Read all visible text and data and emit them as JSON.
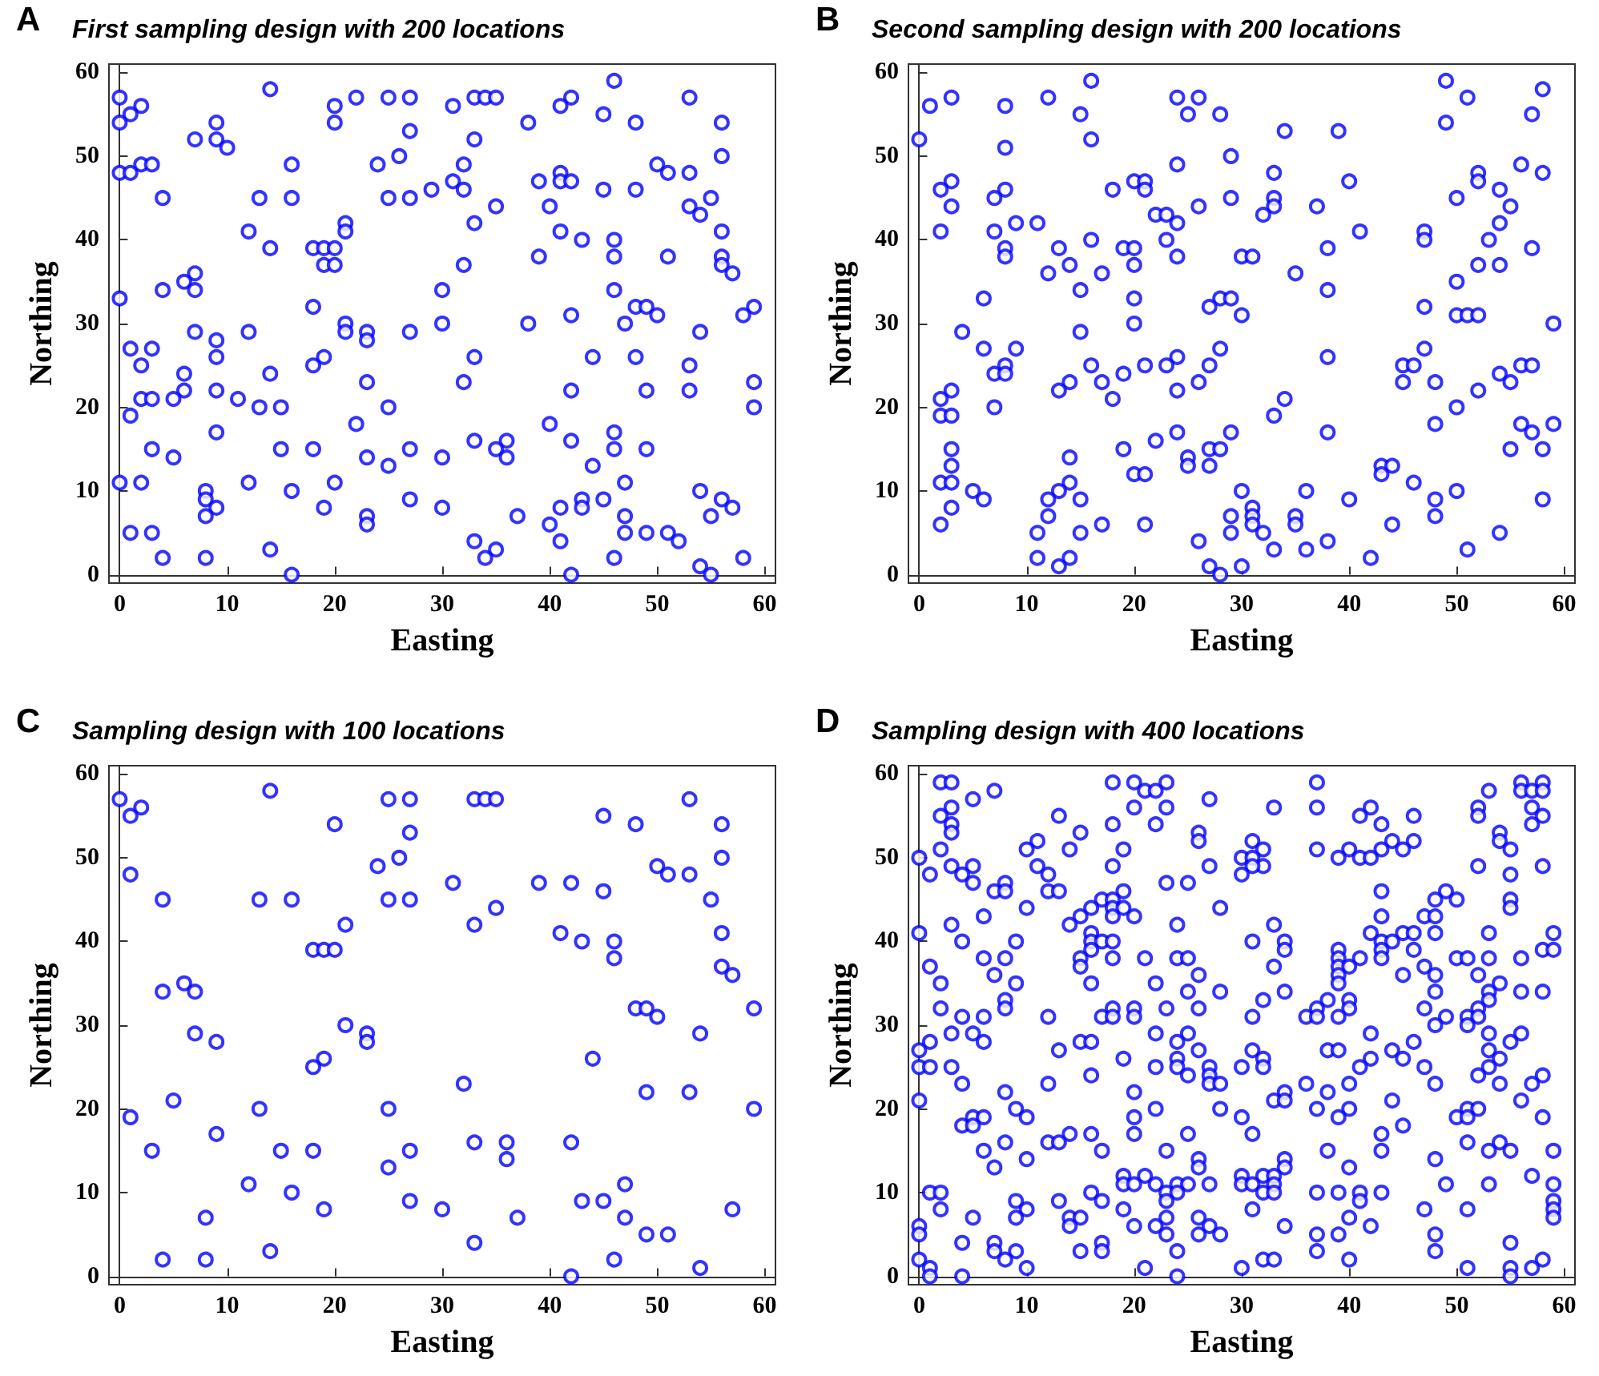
{
  "chart_data": [
    {
      "type": "scatter",
      "title": "First sampling design with 200 locations",
      "xlabel": "Easting",
      "ylabel": "Northing",
      "annotations": [
        "A"
      ],
      "xlim": [
        -1,
        61
      ],
      "ylim": [
        -1,
        61
      ],
      "xticks": [
        0,
        10,
        20,
        30,
        40,
        50,
        60
      ],
      "yticks": [
        0,
        10,
        20,
        30,
        40,
        50,
        60
      ],
      "marker": "circle",
      "color": "#0000ff",
      "x": [
        14,
        46,
        0,
        22,
        25,
        27,
        33,
        34,
        35,
        42,
        53,
        2,
        20,
        31,
        41,
        1,
        45,
        0,
        9,
        20,
        38,
        48,
        56,
        27,
        7,
        9,
        33,
        10,
        26,
        56,
        2,
        3,
        16,
        24,
        32,
        50,
        0,
        1,
        41,
        51,
        53,
        31,
        39,
        41,
        42,
        29,
        32,
        45,
        48,
        4,
        13,
        16,
        25,
        27,
        55,
        35,
        40,
        53,
        54,
        21,
        33,
        12,
        21,
        41,
        56,
        43,
        46,
        14,
        18,
        19,
        20,
        19,
        20,
        32,
        39,
        46,
        51,
        56,
        56,
        7,
        57,
        6,
        4,
        7,
        30,
        46,
        0,
        18,
        48,
        49,
        59,
        42,
        50,
        58,
        21,
        30,
        38,
        47,
        7,
        12,
        21,
        23,
        27,
        54,
        9,
        23,
        1,
        3,
        9,
        19,
        33,
        44,
        48,
        2,
        18,
        53,
        6,
        14,
        23,
        32,
        59,
        6,
        9,
        42,
        49,
        53,
        2,
        3,
        5,
        11,
        13,
        15,
        25,
        59,
        1,
        22,
        40,
        9,
        46,
        33,
        36,
        42,
        3,
        15,
        18,
        27,
        35,
        46,
        49,
        5,
        23,
        30,
        36,
        25,
        44,
        0,
        2,
        12,
        20,
        47,
        8,
        16,
        54,
        8,
        27,
        43,
        45,
        56,
        9,
        19,
        30,
        41,
        43,
        57,
        8,
        23,
        37,
        47,
        55,
        23,
        40,
        1,
        3,
        47,
        49,
        51,
        33,
        41,
        52,
        14,
        35,
        4,
        8,
        34,
        46,
        58,
        54,
        16,
        42,
        55
      ],
      "values": [
        58,
        59,
        57,
        57,
        57,
        57,
        57,
        57,
        57,
        57,
        57,
        56,
        56,
        56,
        56,
        55,
        55,
        54,
        54,
        54,
        54,
        54,
        54,
        53,
        52,
        52,
        52,
        51,
        50,
        50,
        49,
        49,
        49,
        49,
        49,
        49,
        48,
        48,
        48,
        48,
        48,
        47,
        47,
        47,
        47,
        46,
        46,
        46,
        46,
        45,
        45,
        45,
        45,
        45,
        45,
        44,
        44,
        44,
        43,
        42,
        42,
        41,
        41,
        41,
        41,
        40,
        40,
        39,
        39,
        39,
        39,
        37,
        37,
        37,
        38,
        38,
        38,
        38,
        37,
        36,
        36,
        35,
        34,
        34,
        34,
        34,
        33,
        32,
        32,
        32,
        32,
        31,
        31,
        31,
        30,
        30,
        30,
        30,
        29,
        29,
        29,
        29,
        29,
        29,
        28,
        28,
        27,
        27,
        26,
        26,
        26,
        26,
        26,
        25,
        25,
        25,
        24,
        24,
        23,
        23,
        23,
        22,
        22,
        22,
        22,
        22,
        21,
        21,
        21,
        21,
        20,
        20,
        20,
        20,
        19,
        18,
        18,
        17,
        17,
        16,
        16,
        16,
        15,
        15,
        15,
        15,
        15,
        15,
        15,
        14,
        14,
        14,
        14,
        13,
        13,
        11,
        11,
        11,
        11,
        11,
        10,
        10,
        10,
        9,
        9,
        9,
        9,
        9,
        8,
        8,
        8,
        8,
        8,
        8,
        7,
        7,
        7,
        7,
        7,
        6,
        6,
        5,
        5,
        5,
        5,
        5,
        4,
        4,
        4,
        3,
        3,
        2,
        2,
        2,
        2,
        2,
        1,
        0,
        0,
        0
      ]
    },
    {
      "type": "scatter",
      "title": "Second sampling design with 200 locations",
      "xlabel": "Easting",
      "ylabel": "Northing",
      "annotations": [
        "B"
      ],
      "xlim": [
        -1,
        61
      ],
      "ylim": [
        -1,
        61
      ],
      "xticks": [
        0,
        10,
        20,
        30,
        40,
        50,
        60
      ],
      "yticks": [
        0,
        10,
        20,
        30,
        40,
        50,
        60
      ],
      "marker": "circle",
      "color": "#0000ff",
      "x": [
        16,
        49,
        58,
        3,
        12,
        24,
        26,
        51,
        1,
        8,
        15,
        25,
        28,
        57,
        49,
        34,
        39,
        0,
        16,
        8,
        29,
        24,
        56,
        33,
        52,
        58,
        3,
        20,
        21,
        40,
        52,
        2,
        8,
        18,
        21,
        54,
        7,
        29,
        33,
        50,
        3,
        26,
        33,
        37,
        55,
        22,
        23,
        32,
        9,
        11,
        24,
        54,
        2,
        7,
        41,
        47,
        16,
        23,
        47,
        53,
        8,
        13,
        19,
        20,
        38,
        57,
        8,
        24,
        30,
        31,
        14,
        20,
        52,
        54,
        12,
        17,
        35,
        50,
        15,
        38,
        6,
        20,
        28,
        29,
        27,
        47,
        30,
        50,
        51,
        52,
        20,
        59,
        4,
        15,
        6,
        9,
        28,
        47,
        24,
        38,
        8,
        16,
        21,
        23,
        27,
        45,
        46,
        56,
        57,
        7,
        8,
        19,
        54,
        14,
        17,
        26,
        45,
        48,
        55,
        3,
        13,
        24,
        52,
        2,
        18,
        34,
        7,
        50,
        2,
        3,
        33,
        48,
        56,
        59,
        24,
        29,
        38,
        57,
        22,
        3,
        19,
        27,
        28,
        55,
        58,
        14,
        25,
        3,
        25,
        27,
        43,
        44,
        43,
        20,
        21,
        2,
        3,
        14,
        46,
        5,
        13,
        30,
        36,
        50,
        6,
        12,
        15,
        40,
        48,
        58,
        3,
        31,
        12,
        29,
        31,
        35,
        48,
        2,
        17,
        21,
        31,
        35,
        44,
        11,
        15,
        29,
        32,
        54,
        26,
        38,
        33,
        36,
        51,
        11,
        14,
        42,
        13,
        27,
        30,
        28
      ],
      "values": [
        59,
        59,
        58,
        57,
        57,
        57,
        57,
        57,
        56,
        56,
        55,
        55,
        55,
        55,
        54,
        53,
        53,
        52,
        52,
        51,
        50,
        49,
        49,
        48,
        48,
        48,
        47,
        47,
        47,
        47,
        47,
        46,
        46,
        46,
        46,
        46,
        45,
        45,
        45,
        45,
        44,
        44,
        44,
        44,
        44,
        43,
        43,
        43,
        42,
        42,
        42,
        42,
        41,
        41,
        41,
        41,
        40,
        40,
        40,
        40,
        39,
        39,
        39,
        39,
        39,
        39,
        38,
        38,
        38,
        38,
        37,
        37,
        37,
        37,
        36,
        36,
        36,
        35,
        34,
        34,
        33,
        33,
        33,
        33,
        32,
        32,
        31,
        31,
        31,
        31,
        30,
        30,
        29,
        29,
        27,
        27,
        27,
        27,
        26,
        26,
        25,
        25,
        25,
        25,
        25,
        25,
        25,
        25,
        25,
        24,
        24,
        24,
        24,
        23,
        23,
        23,
        23,
        23,
        23,
        22,
        22,
        22,
        22,
        21,
        21,
        21,
        20,
        20,
        19,
        19,
        19,
        18,
        18,
        18,
        17,
        17,
        17,
        17,
        16,
        15,
        15,
        15,
        15,
        15,
        15,
        14,
        14,
        13,
        13,
        13,
        13,
        13,
        12,
        12,
        12,
        11,
        11,
        11,
        11,
        10,
        10,
        10,
        10,
        10,
        9,
        9,
        9,
        9,
        9,
        9,
        8,
        8,
        7,
        7,
        7,
        7,
        7,
        6,
        6,
        6,
        6,
        6,
        6,
        5,
        5,
        5,
        5,
        5,
        4,
        4,
        3,
        3,
        3,
        2,
        2,
        2,
        1,
        1,
        1,
        0
      ]
    },
    {
      "type": "scatter",
      "title": "Sampling design with 100 locations",
      "xlabel": "Easting",
      "ylabel": "Northing",
      "annotations": [
        "C"
      ],
      "xlim": [
        -1,
        61
      ],
      "ylim": [
        -1,
        61
      ],
      "xticks": [
        0,
        10,
        20,
        30,
        40,
        50,
        60
      ],
      "yticks": [
        0,
        10,
        20,
        30,
        40,
        50,
        60
      ],
      "marker": "circle",
      "color": "#0000ff",
      "x": [
        14,
        0,
        25,
        27,
        33,
        34,
        35,
        53,
        2,
        1,
        45,
        20,
        48,
        56,
        27,
        26,
        56,
        24,
        50,
        1,
        51,
        53,
        31,
        39,
        42,
        45,
        4,
        13,
        16,
        25,
        27,
        55,
        35,
        21,
        33,
        41,
        56,
        43,
        46,
        18,
        19,
        20,
        46,
        56,
        57,
        6,
        4,
        7,
        48,
        49,
        59,
        50,
        21,
        23,
        54,
        7,
        9,
        23,
        19,
        44,
        18,
        32,
        49,
        53,
        5,
        13,
        25,
        59,
        1,
        9,
        33,
        36,
        42,
        3,
        15,
        18,
        27,
        36,
        25,
        12,
        47,
        16,
        27,
        43,
        45,
        19,
        30,
        57,
        8,
        37,
        47,
        49,
        51,
        33,
        14,
        4,
        8,
        46,
        54,
        42
      ],
      "values": [
        58,
        57,
        57,
        57,
        57,
        57,
        57,
        57,
        56,
        55,
        55,
        54,
        54,
        54,
        53,
        50,
        50,
        49,
        49,
        48,
        48,
        48,
        47,
        47,
        47,
        46,
        45,
        45,
        45,
        45,
        45,
        45,
        44,
        42,
        42,
        41,
        41,
        40,
        40,
        39,
        39,
        39,
        38,
        37,
        36,
        35,
        34,
        34,
        32,
        32,
        32,
        31,
        30,
        29,
        29,
        29,
        28,
        28,
        26,
        26,
        25,
        23,
        22,
        22,
        21,
        20,
        20,
        20,
        19,
        17,
        16,
        16,
        16,
        15,
        15,
        15,
        15,
        14,
        13,
        11,
        11,
        10,
        9,
        9,
        9,
        8,
        8,
        8,
        7,
        7,
        7,
        5,
        5,
        4,
        3,
        2,
        2,
        2,
        1,
        0
      ]
    },
    {
      "type": "scatter",
      "title": "Sampling design with 400 locations",
      "xlabel": "Easting",
      "ylabel": "Northing",
      "annotations": [
        "D"
      ],
      "xlim": [
        -1,
        61
      ],
      "ylim": [
        -1,
        61
      ],
      "xticks": [
        0,
        10,
        20,
        30,
        40,
        50,
        60
      ],
      "yticks": [
        0,
        10,
        20,
        30,
        40,
        50,
        60
      ],
      "marker": "circle",
      "color": "#0000ff",
      "x": [
        2,
        3,
        18,
        20,
        23,
        37,
        56,
        58,
        7,
        21,
        22,
        56,
        57,
        58,
        53,
        5,
        27,
        20,
        23,
        3,
        33,
        37,
        42,
        52,
        57,
        2,
        13,
        41,
        46,
        52,
        58,
        3,
        18,
        22,
        43,
        57,
        3,
        15,
        26,
        54,
        26,
        11,
        31,
        44,
        46,
        54,
        2,
        10,
        14,
        19,
        32,
        37,
        40,
        43,
        45,
        55,
        0,
        30,
        31,
        39,
        41,
        42,
        3,
        5,
        11,
        18,
        27,
        32,
        31,
        52,
        58,
        1,
        4,
        12,
        30,
        55,
        5,
        8,
        23,
        25,
        7,
        8,
        12,
        13,
        19,
        43,
        49,
        17,
        18,
        48,
        50,
        55,
        10,
        16,
        18,
        19,
        28,
        55,
        6,
        15,
        20,
        18,
        43,
        47,
        48,
        3,
        14,
        24,
        33,
        0,
        16,
        42,
        45,
        46,
        48,
        53,
        59,
        4,
        9,
        16,
        17,
        18,
        31,
        34,
        43,
        44,
        16,
        34,
        39,
        43,
        46,
        58,
        59,
        6,
        8,
        15,
        18,
        21,
        24,
        25,
        39,
        41,
        43,
        50,
        51,
        53,
        56,
        1,
        15,
        39,
        40,
        33,
        47,
        7,
        26,
        39,
        45,
        48,
        52,
        9,
        2,
        16,
        22,
        39,
        54,
        25,
        28,
        48,
        53,
        56,
        58,
        34,
        8,
        32,
        38,
        40,
        53,
        2,
        8,
        18,
        20,
        23,
        26,
        37,
        40,
        47,
        52,
        4,
        6,
        12,
        17,
        18,
        20,
        31,
        36,
        37,
        39,
        49,
        51,
        52,
        48,
        51,
        3,
        5,
        25,
        22,
        53,
        42,
        56,
        6,
        1,
        15,
        16,
        24,
        55,
        46,
        0,
        13,
        26,
        38,
        39,
        44,
        53,
        31,
        19,
        24,
        42,
        45,
        54,
        32,
        0,
        1,
        3,
        24,
        22,
        27,
        30,
        32,
        41,
        47,
        53,
        16,
        25,
        27,
        52,
        58,
        4,
        12,
        27,
        28,
        48,
        54,
        57,
        36,
        40,
        20,
        8,
        38,
        34,
        0,
        56,
        33,
        34,
        44,
        9,
        22,
        28,
        37,
        40,
        51,
        52,
        10,
        20,
        5,
        6,
        39,
        30,
        50,
        51,
        58,
        4,
        5,
        45,
        20,
        25,
        14,
        16,
        43,
        31,
        8,
        12,
        13,
        51,
        54,
        6,
        23,
        17,
        38,
        43,
        53,
        55,
        59,
        10,
        26,
        34,
        48,
        7,
        26,
        34,
        40,
        19,
        21,
        30,
        32,
        33,
        57,
        19,
        20,
        22,
        24,
        25,
        27,
        30,
        31,
        33,
        49,
        53,
        59,
        23,
        24,
        1,
        2,
        16,
        32,
        33,
        37,
        39,
        41,
        43,
        23,
        17,
        13,
        9,
        41,
        59,
        2,
        10,
        19,
        31,
        47,
        51,
        59,
        5,
        9,
        23,
        26,
        14,
        15,
        40,
        59,
        0,
        14,
        20,
        22,
        27,
        34,
        42,
        0,
        23,
        26,
        28,
        37,
        39,
        48,
        4,
        7,
        17,
        55,
        7,
        9,
        15,
        17,
        24,
        37,
        48,
        0,
        8,
        40,
        32,
        33,
        58,
        1,
        10,
        21,
        30,
        51,
        55,
        57,
        1,
        4,
        24,
        55
      ],
      "values": [
        59,
        59,
        59,
        59,
        59,
        59,
        59,
        59,
        58,
        58,
        58,
        58,
        58,
        58,
        58,
        57,
        57,
        56,
        56,
        56,
        56,
        56,
        56,
        56,
        56,
        55,
        55,
        55,
        55,
        55,
        55,
        54,
        54,
        54,
        54,
        54,
        53,
        53,
        53,
        53,
        52,
        52,
        52,
        52,
        52,
        52,
        51,
        51,
        51,
        51,
        51,
        51,
        51,
        51,
        51,
        51,
        50,
        50,
        50,
        50,
        50,
        50,
        49,
        49,
        49,
        49,
        49,
        49,
        49,
        49,
        49,
        48,
        48,
        48,
        48,
        48,
        47,
        47,
        47,
        47,
        46,
        46,
        46,
        46,
        46,
        46,
        46,
        45,
        45,
        45,
        45,
        45,
        44,
        44,
        44,
        44,
        44,
        44,
        43,
        43,
        43,
        43,
        43,
        43,
        43,
        42,
        42,
        42,
        42,
        41,
        41,
        41,
        41,
        41,
        41,
        41,
        41,
        40,
        40,
        40,
        40,
        40,
        40,
        40,
        40,
        40,
        39,
        39,
        39,
        39,
        39,
        39,
        39,
        38,
        38,
        38,
        38,
        38,
        38,
        38,
        38,
        38,
        38,
        38,
        38,
        38,
        38,
        37,
        37,
        37,
        37,
        37,
        37,
        36,
        36,
        36,
        36,
        36,
        36,
        35,
        35,
        35,
        35,
        35,
        35,
        34,
        34,
        34,
        34,
        34,
        34,
        34,
        33,
        33,
        33,
        33,
        33,
        32,
        32,
        32,
        32,
        32,
        32,
        32,
        32,
        32,
        32,
        31,
        31,
        31,
        31,
        31,
        31,
        31,
        31,
        31,
        31,
        31,
        31,
        31,
        30,
        30,
        29,
        29,
        29,
        29,
        29,
        29,
        29,
        28,
        28,
        28,
        28,
        28,
        28,
        28,
        27,
        27,
        27,
        27,
        27,
        27,
        27,
        27,
        26,
        26,
        26,
        26,
        26,
        26,
        25,
        25,
        25,
        25,
        25,
        25,
        25,
        25,
        25,
        25,
        25,
        24,
        24,
        24,
        24,
        24,
        23,
        23,
        23,
        23,
        23,
        23,
        23,
        23,
        23,
        22,
        22,
        22,
        22,
        21,
        21,
        21,
        21,
        21,
        20,
        20,
        20,
        20,
        20,
        20,
        20,
        19,
        19,
        19,
        19,
        19,
        19,
        19,
        19,
        19,
        18,
        18,
        18,
        17,
        17,
        17,
        17,
        17,
        17,
        16,
        16,
        16,
        16,
        16,
        15,
        15,
        15,
        15,
        15,
        15,
        15,
        15,
        14,
        14,
        14,
        14,
        13,
        13,
        13,
        13,
        12,
        12,
        12,
        12,
        12,
        12,
        11,
        11,
        11,
        11,
        11,
        11,
        11,
        11,
        11,
        11,
        11,
        11,
        10,
        10,
        10,
        10,
        10,
        10,
        10,
        10,
        10,
        10,
        10,
        9,
        9,
        9,
        9,
        9,
        9,
        8,
        8,
        8,
        8,
        8,
        8,
        8,
        7,
        7,
        7,
        7,
        7,
        7,
        7,
        7,
        6,
        6,
        6,
        6,
        6,
        6,
        6,
        5,
        5,
        5,
        5,
        5,
        5,
        5,
        4,
        4,
        4,
        4,
        3,
        3,
        3,
        3,
        3,
        3,
        3,
        2,
        2,
        2,
        2,
        2,
        2,
        1,
        1,
        1,
        1,
        1,
        1,
        1,
        0,
        0,
        0,
        0
      ]
    }
  ]
}
